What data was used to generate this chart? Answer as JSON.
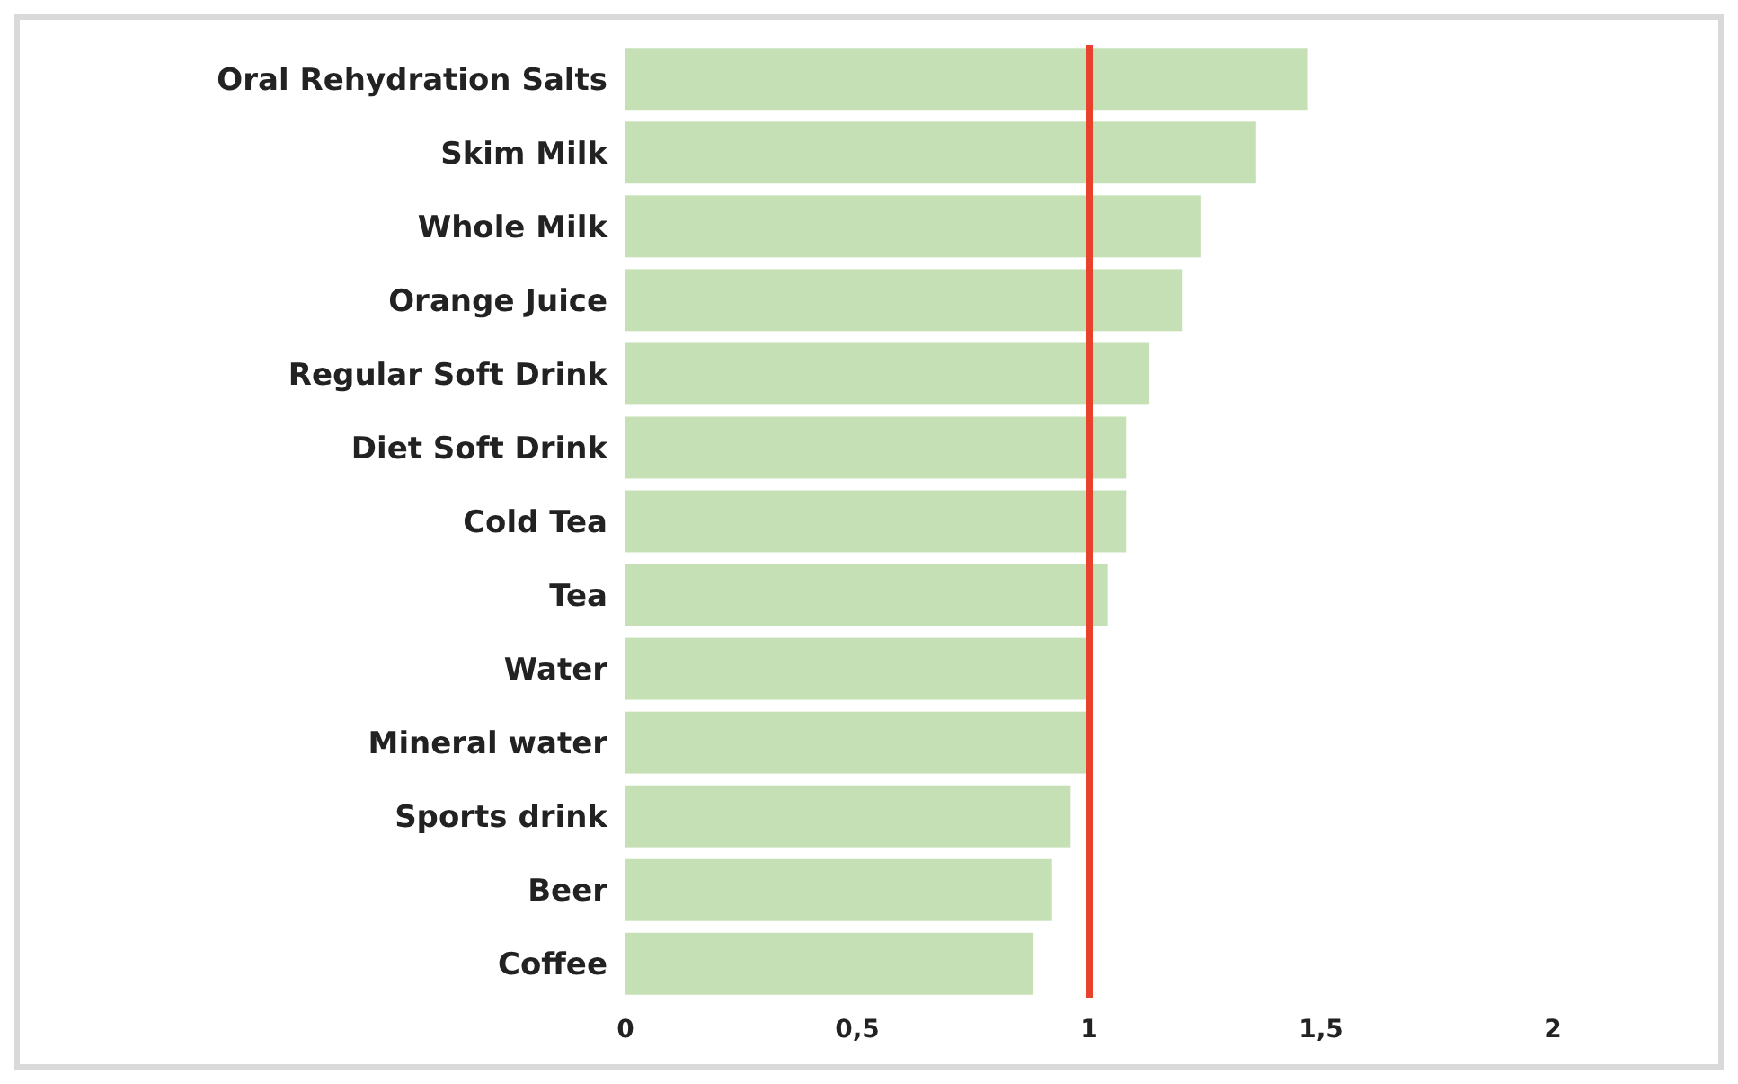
{
  "chart_data": {
    "type": "bar",
    "orientation": "horizontal",
    "categories": [
      "Oral Rehydration Salts",
      "Skim Milk",
      "Whole Milk",
      "Orange Juice",
      "Regular Soft Drink",
      "Diet Soft Drink",
      "Cold Tea",
      "Tea",
      "Water",
      "Mineral water",
      "Sports drink",
      "Beer",
      "Coffee"
    ],
    "values": [
      1.47,
      1.36,
      1.24,
      1.2,
      1.13,
      1.08,
      1.08,
      1.04,
      1.0,
      1.0,
      0.96,
      0.92,
      0.88
    ],
    "color": "#c5e0b4",
    "xlim": [
      0,
      2
    ],
    "xticks": [
      0,
      {
        "value": 0.5,
        "label": "0,5"
      },
      1,
      {
        "value": 1.5,
        "label": "1,5"
      },
      2
    ],
    "ref_lines": [
      {
        "axis": "x",
        "value": 1,
        "color": "#e8412c"
      }
    ],
    "grid": false
  }
}
